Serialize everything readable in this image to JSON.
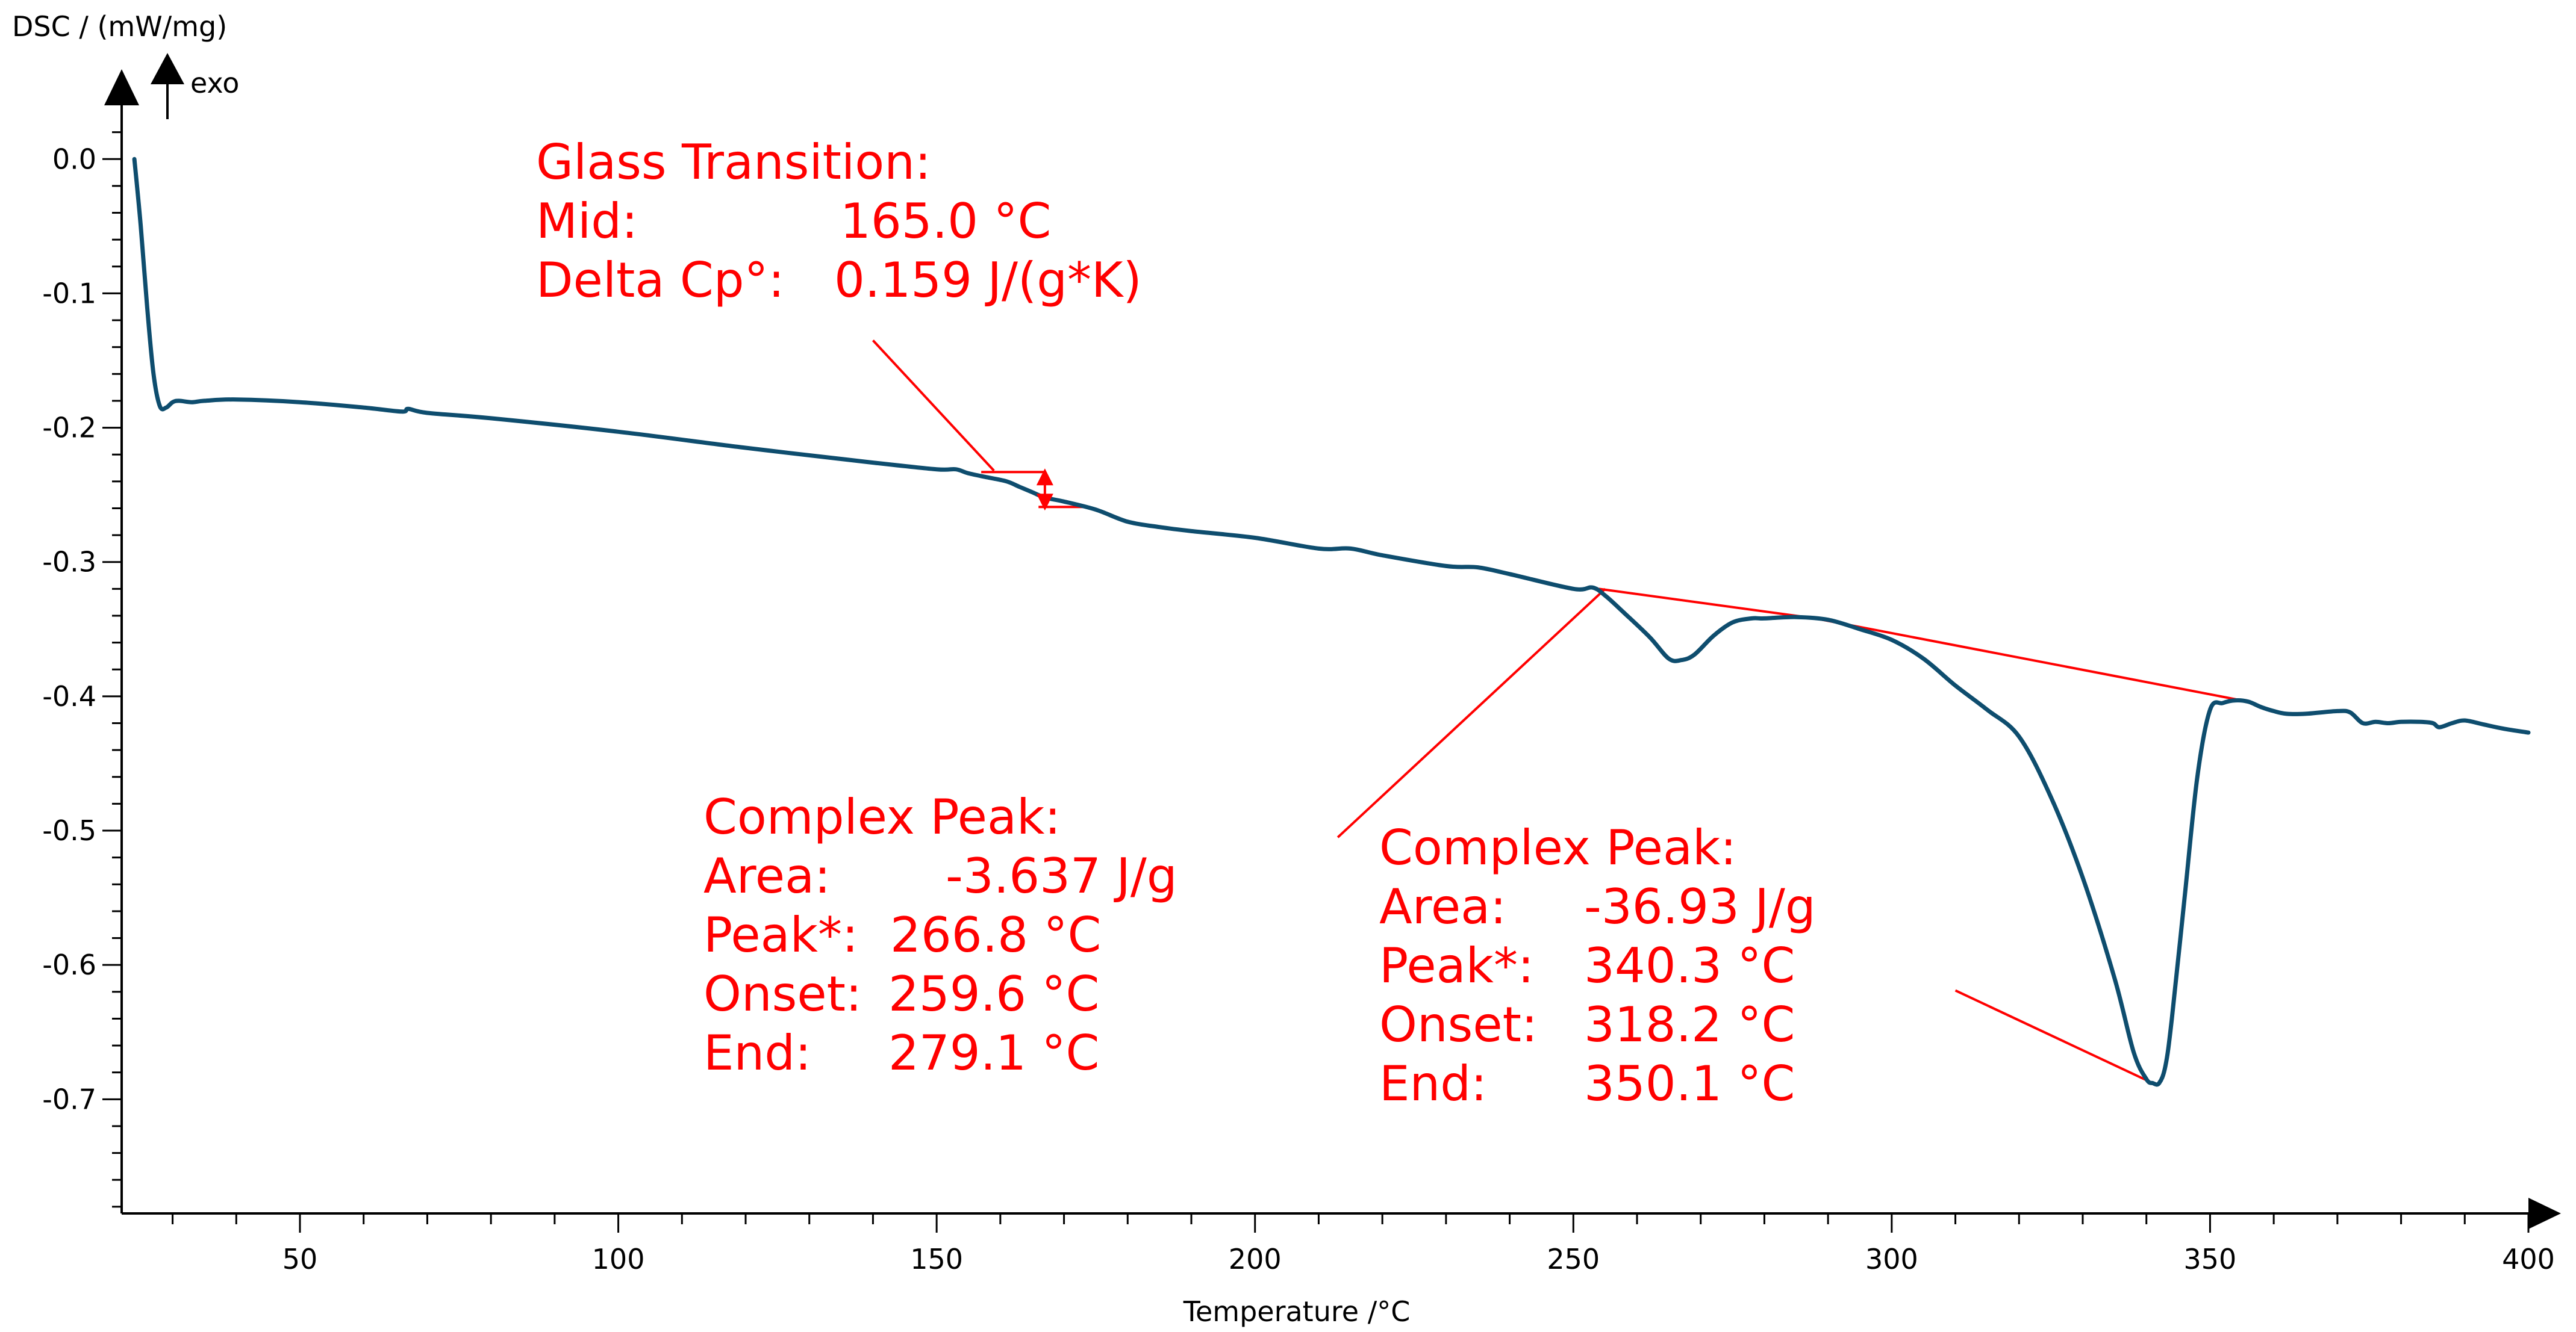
{
  "chart_data": {
    "type": "line",
    "title": "",
    "ylabel": "DSC / (mW/mg)",
    "exo_label": "exo",
    "xlabel": "Temperature /°C",
    "xlim": [
      22,
      400
    ],
    "ylim": [
      -0.785,
      0.04
    ],
    "xticks": [
      {
        "value": 50,
        "label": "50"
      },
      {
        "value": 100,
        "label": "100"
      },
      {
        "value": 150,
        "label": "150"
      },
      {
        "value": 200,
        "label": "200"
      },
      {
        "value": 250,
        "label": "250"
      },
      {
        "value": 300,
        "label": "300"
      },
      {
        "value": 350,
        "label": "350"
      },
      {
        "value": 400,
        "label": "400"
      }
    ],
    "yticks": [
      {
        "value": 0.0,
        "label": "0.0"
      },
      {
        "value": -0.1,
        "label": "-0.1"
      },
      {
        "value": -0.2,
        "label": "-0.2"
      },
      {
        "value": -0.3,
        "label": "-0.3"
      },
      {
        "value": -0.4,
        "label": "-0.4"
      },
      {
        "value": -0.5,
        "label": "-0.5"
      },
      {
        "value": -0.6,
        "label": "-0.6"
      },
      {
        "value": -0.7,
        "label": "-0.7"
      }
    ],
    "series": [
      {
        "name": "DSC",
        "color": "#0e4d6e",
        "x": [
          24,
          25,
          26,
          27,
          28,
          29,
          30,
          31,
          33,
          35,
          40,
          50,
          60,
          66,
          67,
          70,
          80,
          100,
          120,
          140,
          150,
          153,
          155,
          158,
          161,
          163,
          165,
          167,
          170,
          175,
          180,
          185,
          190,
          200,
          210,
          215,
          220,
          230,
          235,
          240,
          250,
          253,
          255,
          258,
          262,
          265,
          267,
          269,
          272,
          275,
          278,
          280,
          285,
          290,
          295,
          300,
          305,
          310,
          315,
          320,
          325,
          330,
          335,
          338,
          340,
          341,
          342,
          343,
          344,
          346,
          348,
          350,
          352,
          354,
          356,
          358,
          360,
          362,
          365,
          370,
          372,
          374,
          376,
          378,
          380,
          383,
          385,
          386,
          388,
          390,
          393,
          396,
          400
        ],
        "y": [
          0.0,
          -0.05,
          -0.11,
          -0.16,
          -0.184,
          -0.185,
          -0.181,
          -0.18,
          -0.181,
          -0.18,
          -0.179,
          -0.181,
          -0.185,
          -0.188,
          -0.186,
          -0.189,
          -0.193,
          -0.203,
          -0.215,
          -0.226,
          -0.231,
          -0.231,
          -0.234,
          -0.237,
          -0.24,
          -0.244,
          -0.248,
          -0.252,
          -0.255,
          -0.261,
          -0.27,
          -0.274,
          -0.277,
          -0.282,
          -0.29,
          -0.29,
          -0.295,
          -0.303,
          -0.304,
          -0.309,
          -0.32,
          -0.319,
          -0.325,
          -0.338,
          -0.356,
          -0.372,
          -0.373,
          -0.369,
          -0.355,
          -0.345,
          -0.342,
          -0.342,
          -0.341,
          -0.343,
          -0.35,
          -0.358,
          -0.372,
          -0.392,
          -0.41,
          -0.43,
          -0.475,
          -0.535,
          -0.61,
          -0.665,
          -0.685,
          -0.688,
          -0.688,
          -0.675,
          -0.64,
          -0.55,
          -0.46,
          -0.41,
          -0.405,
          -0.403,
          -0.404,
          -0.408,
          -0.411,
          -0.413,
          -0.413,
          -0.411,
          -0.412,
          -0.42,
          -0.419,
          -0.42,
          -0.419,
          -0.419,
          -0.42,
          -0.423,
          -0.42,
          -0.418,
          -0.421,
          -0.424,
          -0.427
        ]
      }
    ],
    "baselines": [
      {
        "name": "glass-transition-upper",
        "x": [
          157,
          167
        ],
        "y": [
          -0.233,
          -0.233
        ]
      },
      {
        "name": "glass-transition-lower",
        "x": [
          166,
          174
        ],
        "y": [
          -0.259,
          -0.259
        ]
      },
      {
        "name": "peak1-baseline",
        "x": [
          254,
          288
        ],
        "y": [
          -0.32,
          -0.342
        ]
      },
      {
        "name": "peak2-baseline",
        "x": [
          288,
          356
        ],
        "y": [
          -0.342,
          -0.404
        ]
      }
    ],
    "leaders": [
      {
        "name": "glass-leader",
        "x": [
          140,
          159
        ],
        "y": [
          -0.135,
          -0.232
        ]
      },
      {
        "name": "peak1-leader",
        "x": [
          213,
          255
        ],
        "y": [
          -0.505,
          -0.32
        ]
      },
      {
        "name": "peak2-leader",
        "x": [
          310,
          341
        ],
        "y": [
          -0.619,
          -0.688
        ]
      }
    ],
    "annotation_color": "#ff0000",
    "annotations": [
      {
        "name": "glass-transition",
        "at_x": 162,
        "at_y": -0.233,
        "lines": [
          [
            "Glass Transition:"
          ],
          [
            "Mid:",
            "165.0 °C"
          ],
          [
            "Delta Cp°:",
            "0.159 J/(g*K)"
          ]
        ]
      },
      {
        "name": "complex-peak-1",
        "at_x": 266.8,
        "at_y": -0.373,
        "lines": [
          [
            "Complex Peak:"
          ],
          [
            "Area:",
            "-3.637 J/g"
          ],
          [
            "Peak*:",
            "266.8 °C"
          ],
          [
            "Onset:",
            "259.6 °C"
          ],
          [
            "End:",
            "279.1 °C"
          ]
        ]
      },
      {
        "name": "complex-peak-2",
        "at_x": 340.3,
        "at_y": -0.688,
        "lines": [
          [
            "Complex Peak:"
          ],
          [
            "Area:",
            "-36.93 J/g"
          ],
          [
            "Peak*:",
            "340.3 °C"
          ],
          [
            "Onset:",
            "318.2 °C"
          ],
          [
            "End:",
            "350.1 °C"
          ]
        ]
      }
    ]
  }
}
